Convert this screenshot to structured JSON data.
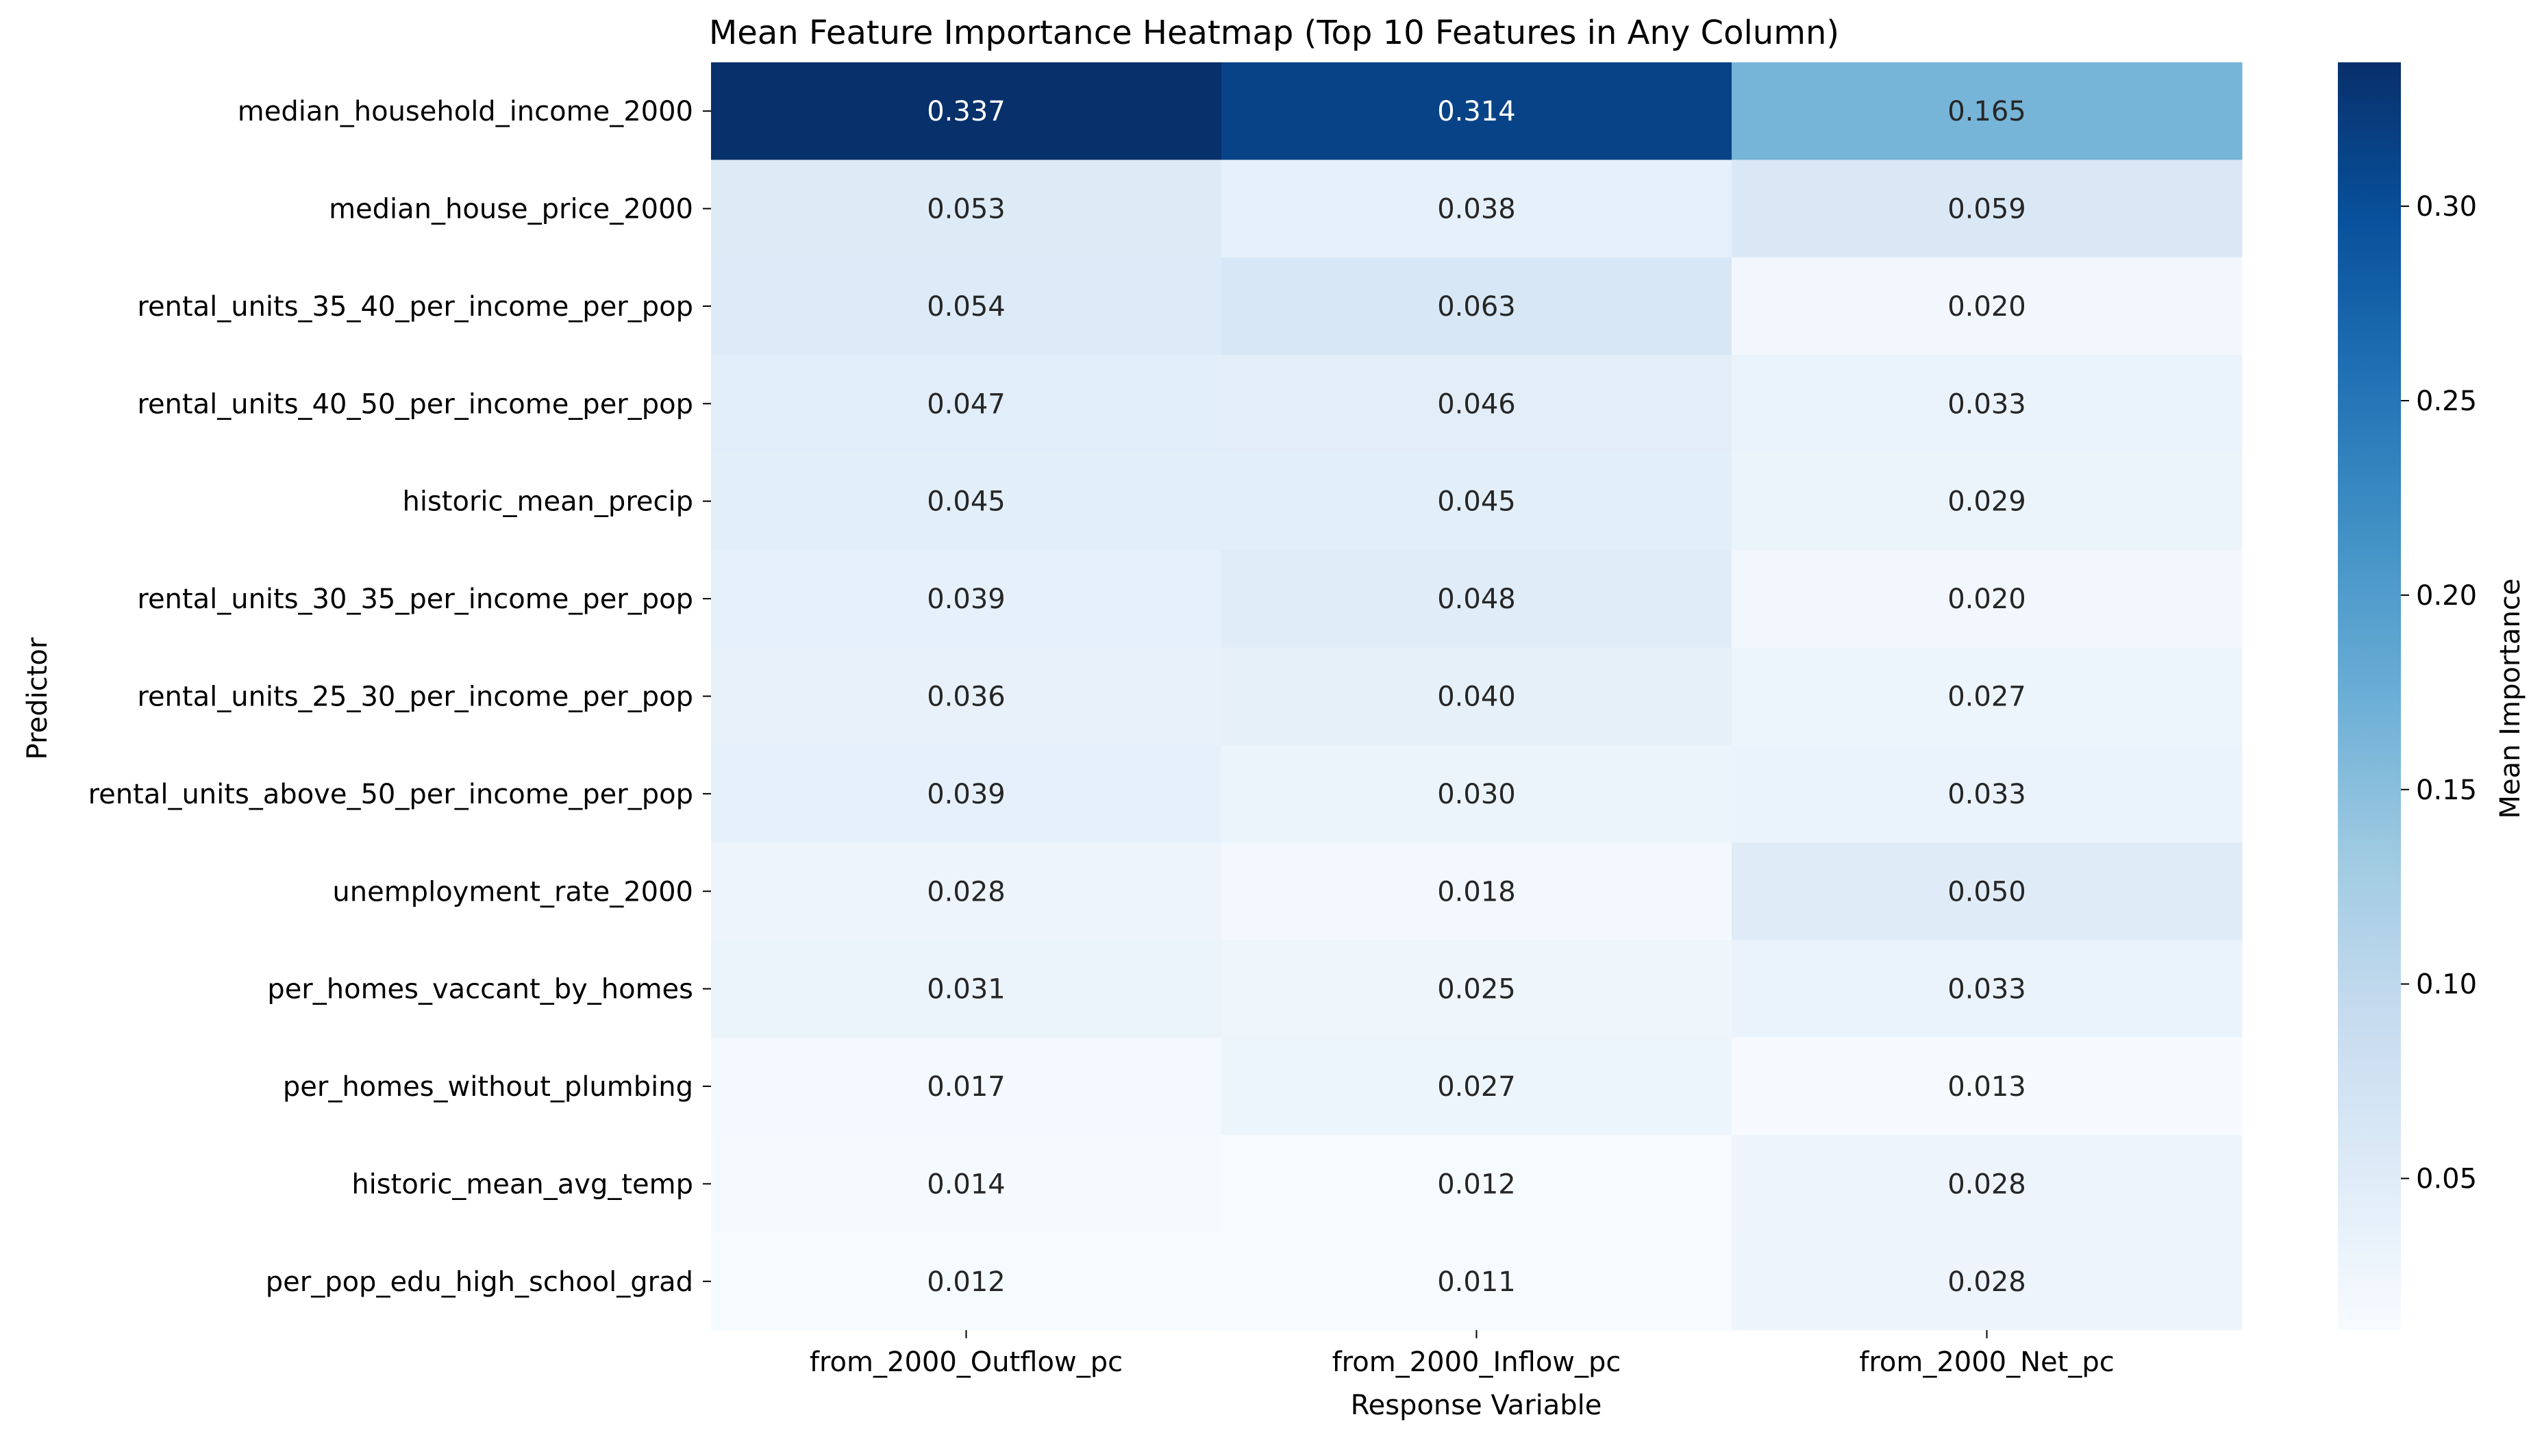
{
  "chart_data": {
    "type": "heatmap",
    "title": "Mean Feature Importance Heatmap (Top 10 Features in Any Column)",
    "xlabel": "Response Variable",
    "ylabel": "Predictor",
    "x_categories": [
      "from_2000_Outflow_pc",
      "from_2000_Inflow_pc",
      "from_2000_Net_pc"
    ],
    "y_categories": [
      "median_household_income_2000",
      "median_house_price_2000",
      "rental_units_35_40_per_income_per_pop",
      "rental_units_40_50_per_income_per_pop",
      "historic_mean_precip",
      "rental_units_30_35_per_income_per_pop",
      "rental_units_25_30_per_income_per_pop",
      "rental_units_above_50_per_income_per_pop",
      "unemployment_rate_2000",
      "per_homes_vaccant_by_homes",
      "per_homes_without_plumbing",
      "historic_mean_avg_temp",
      "per_pop_edu_high_school_grad"
    ],
    "values": [
      [
        0.337,
        0.314,
        0.165
      ],
      [
        0.053,
        0.038,
        0.059
      ],
      [
        0.054,
        0.063,
        0.02
      ],
      [
        0.047,
        0.046,
        0.033
      ],
      [
        0.045,
        0.045,
        0.029
      ],
      [
        0.039,
        0.048,
        0.02
      ],
      [
        0.036,
        0.04,
        0.027
      ],
      [
        0.039,
        0.03,
        0.033
      ],
      [
        0.028,
        0.018,
        0.05
      ],
      [
        0.031,
        0.025,
        0.033
      ],
      [
        0.017,
        0.027,
        0.013
      ],
      [
        0.014,
        0.012,
        0.028
      ],
      [
        0.012,
        0.011,
        0.028
      ]
    ],
    "colorbar": {
      "label": "Mean Importance",
      "colormap": "Blues",
      "range": [
        0.011,
        0.337
      ],
      "ticks": [
        0.05,
        0.1,
        0.15,
        0.2,
        0.25,
        0.3
      ],
      "tick_labels": [
        "0.05",
        "0.10",
        "0.15",
        "0.20",
        "0.25",
        "0.30"
      ]
    },
    "grid": false
  }
}
